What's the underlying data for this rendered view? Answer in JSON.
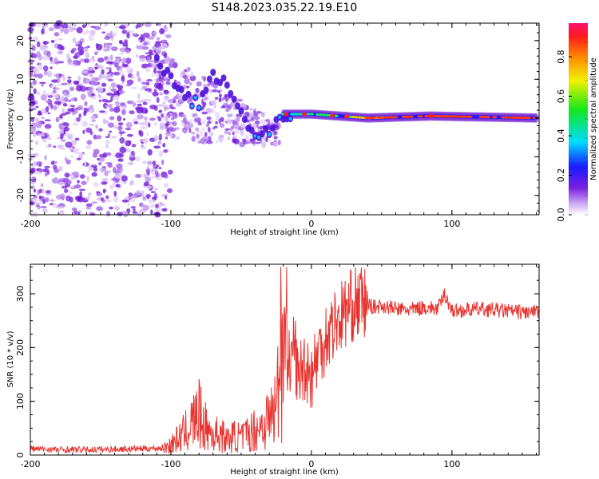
{
  "title": "S148.2023.035.22.19.E10",
  "colors": {
    "line": "#e8332f",
    "spectrum_low": "#8a2be2",
    "spectrum_mid": "#00e0c0",
    "spectrum_high": "#ff2020"
  },
  "chart_data": [
    {
      "type": "heatmap",
      "xlabel": "Height of straight line (km)",
      "ylabel": "Frequency (Hz)",
      "xlim": [
        -200,
        162
      ],
      "ylim": [
        -25,
        24.5
      ],
      "xticks": [
        -200,
        -100,
        0,
        100
      ],
      "yticks": [
        -20,
        -10,
        0,
        10,
        20
      ],
      "colorbar": {
        "label": "Normalized spectral amplitude",
        "range": [
          0,
          1
        ],
        "ticks": [
          "0.0",
          "0.2",
          "0.4",
          "0.6",
          "0.8"
        ]
      },
      "ridge": [
        {
          "x": -110,
          "y": 16
        },
        {
          "x": -100,
          "y": 10
        },
        {
          "x": -90,
          "y": 5
        },
        {
          "x": -80,
          "y": 4
        },
        {
          "x": -70,
          "y": 11
        },
        {
          "x": -60,
          "y": 9
        },
        {
          "x": -50,
          "y": 2
        },
        {
          "x": -40,
          "y": -5
        },
        {
          "x": -30,
          "y": -3
        },
        {
          "x": -20,
          "y": 1
        },
        {
          "x": -10,
          "y": 1
        },
        {
          "x": 0,
          "y": 1
        },
        {
          "x": 20,
          "y": 0.5
        },
        {
          "x": 40,
          "y": 0
        },
        {
          "x": 85,
          "y": 0.5
        },
        {
          "x": 160,
          "y": 0
        }
      ]
    },
    {
      "type": "line",
      "xlabel": "Height of straight line (km)",
      "ylabel": "SNR (10 * v/v)",
      "xlim": [
        -200,
        162
      ],
      "ylim": [
        0,
        355
      ],
      "xticks": [
        -200,
        -100,
        0,
        100
      ],
      "yticks": [
        0,
        100,
        200,
        300
      ],
      "series": [
        {
          "x": [
            -200,
            -180,
            -160,
            -140,
            -120,
            -105,
            -100,
            -95,
            -90,
            -85,
            -80,
            -75,
            -70,
            -65,
            -60,
            -55,
            -50,
            -45,
            -40,
            -35,
            -30,
            -25,
            -22,
            -20,
            -18,
            -15,
            -12,
            -10,
            -5,
            0,
            5,
            10,
            15,
            20,
            25,
            30,
            35,
            40,
            45,
            50,
            60,
            70,
            80,
            90,
            95,
            100,
            110,
            120,
            130,
            140,
            150,
            160
          ],
          "y": [
            12,
            10,
            10,
            11,
            12,
            13,
            20,
            30,
            42,
            60,
            75,
            50,
            38,
            40,
            28,
            35,
            32,
            40,
            48,
            55,
            70,
            90,
            180,
            250,
            200,
            150,
            220,
            140,
            170,
            150,
            190,
            220,
            240,
            255,
            270,
            280,
            285,
            280,
            275,
            278,
            272,
            270,
            275,
            272,
            300,
            268,
            270,
            272,
            270,
            268,
            266,
            265
          ]
        }
      ]
    }
  ]
}
